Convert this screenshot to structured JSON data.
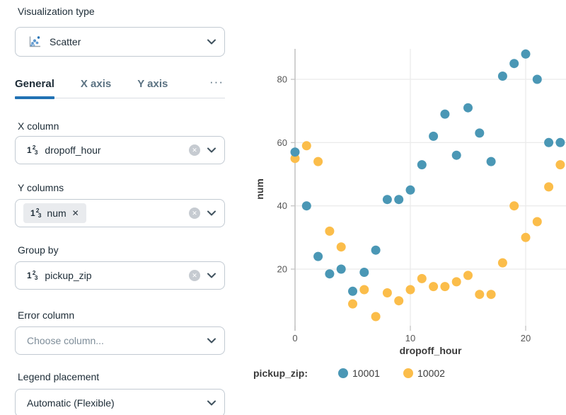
{
  "icons": {
    "clear_glyph": "✕",
    "chip_remove_glyph": "✕",
    "more_tabs_glyph": "···"
  },
  "panel": {
    "viz_type": {
      "label": "Visualization type",
      "value": "Scatter"
    },
    "tabs": [
      {
        "label": "General",
        "active": true
      },
      {
        "label": "X axis",
        "active": false
      },
      {
        "label": "Y axis",
        "active": false
      }
    ],
    "fields": {
      "x_column": {
        "label": "X column",
        "value": "dropoff_hour",
        "type": "number"
      },
      "y_columns": {
        "label": "Y columns",
        "chips": [
          {
            "value": "num",
            "type": "number"
          }
        ]
      },
      "group_by": {
        "label": "Group by",
        "value": "pickup_zip",
        "type": "number"
      },
      "error_column": {
        "label": "Error column",
        "placeholder": "Choose column..."
      },
      "legend_placement": {
        "label": "Legend placement",
        "value": "Automatic (Flexible)"
      }
    }
  },
  "chart_data": {
    "type": "scatter",
    "title": "",
    "xlabel": "dropoff_hour",
    "ylabel": "num",
    "legend_title": "pickup_zip:",
    "legend_position": "bottom",
    "grid": true,
    "x_ticks": [
      0,
      10,
      20
    ],
    "y_ticks": [
      20,
      40,
      60,
      80
    ],
    "xlim": [
      0,
      23.5
    ],
    "ylim": [
      0,
      90
    ],
    "x": [
      0,
      1,
      2,
      3,
      4,
      5,
      6,
      7,
      8,
      9,
      10,
      11,
      12,
      13,
      14,
      15,
      16,
      17,
      18,
      19,
      20,
      21,
      22,
      23
    ],
    "series": [
      {
        "name": "10001",
        "color": "#4A97B5",
        "values": [
          57,
          40,
          24,
          18.5,
          20,
          13,
          19,
          26,
          42,
          42,
          45,
          53,
          62,
          69,
          56,
          71,
          63,
          54,
          81,
          85,
          88,
          80,
          60,
          60
        ]
      },
      {
        "name": "10002",
        "color": "#FBBD4A",
        "values": [
          55,
          59,
          54,
          32,
          27,
          9,
          13.5,
          5,
          12.5,
          10,
          13.5,
          17,
          14.5,
          14.5,
          16,
          18,
          12,
          12,
          22,
          40,
          30,
          35,
          46,
          53
        ]
      }
    ]
  }
}
